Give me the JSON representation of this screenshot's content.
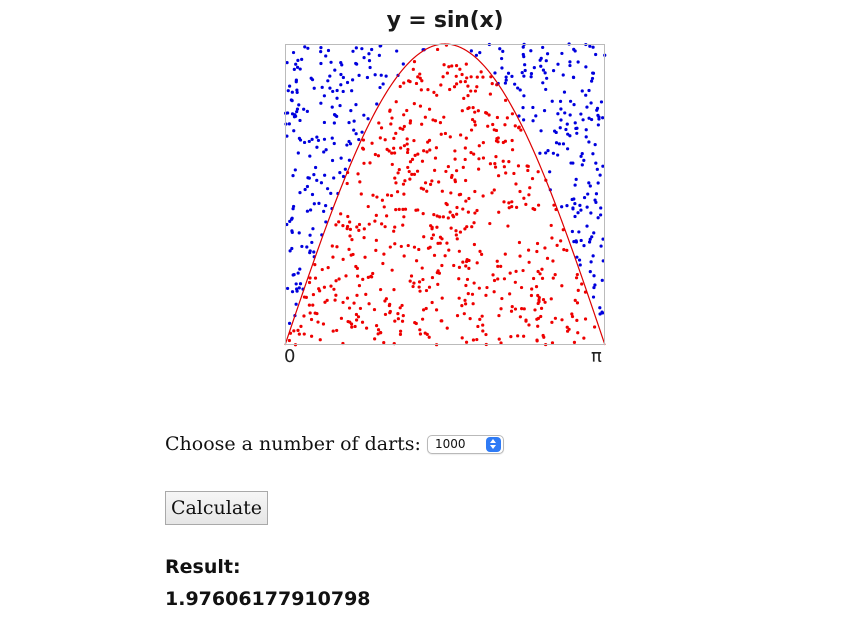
{
  "chart_data": {
    "type": "scatter",
    "title": "y = sin(x)",
    "x_tick_labels": [
      "0",
      "π"
    ],
    "xlim": [
      0,
      3.14159
    ],
    "ylim": [
      0,
      1
    ],
    "curve": "sin(x)",
    "num_darts": 1000,
    "colors": {
      "inside": "#ee0000",
      "outside": "#0000dd",
      "curve": "#dd0000",
      "border": "#bbbbbb"
    }
  },
  "controls": {
    "darts_label": "Choose a number of darts:",
    "darts_selected": "1000",
    "calculate_label": "Calculate"
  },
  "result": {
    "label": "Result:",
    "value": "1.97606177910798"
  }
}
